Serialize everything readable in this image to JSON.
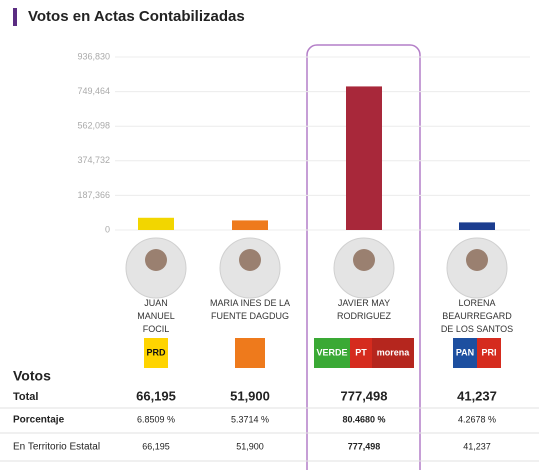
{
  "header": {
    "title": "Votos en Actas Contabilizadas"
  },
  "chart_data": {
    "type": "bar",
    "categories": [
      "JUAN MANUEL FOCIL",
      "MARIA INES DE LA FUENTE DAGDUG",
      "JAVIER MAY RODRIGUEZ",
      "LORENA BEAURREGARD DE LOS SANTOS"
    ],
    "values": [
      66195,
      51900,
      777498,
      41237
    ],
    "colors": [
      "#f2d600",
      "#ee7a1c",
      "#a8283a",
      "#1b3d8f"
    ],
    "ylim": [
      0,
      936830
    ],
    "yticks": [
      0,
      {
        "value": 187366,
        "label": "187,366"
      },
      {
        "value": 374732,
        "label": "374,732"
      },
      {
        "value": 562098,
        "label": "562,098"
      },
      {
        "value": 749464,
        "label": "749,464"
      },
      {
        "value": 936830,
        "label": "936,830"
      }
    ],
    "grid": true
  },
  "logos": [
    [
      "PRD"
    ],
    [],
    [
      "VERDE",
      "PT",
      "morena"
    ],
    [
      "PAN",
      "PRI"
    ]
  ],
  "table": {
    "heading": "Votos",
    "rows": [
      [
        "Total",
        "66,195",
        "51,900",
        "777,498",
        "41,237"
      ],
      [
        "Porcentaje",
        "6.8509 %",
        "5.3714 %",
        "80.4680 %",
        "4.2678 %"
      ],
      [
        "En Territorio Estatal",
        "66,195",
        "51,900",
        "777,498",
        "41,237"
      ]
    ]
  }
}
